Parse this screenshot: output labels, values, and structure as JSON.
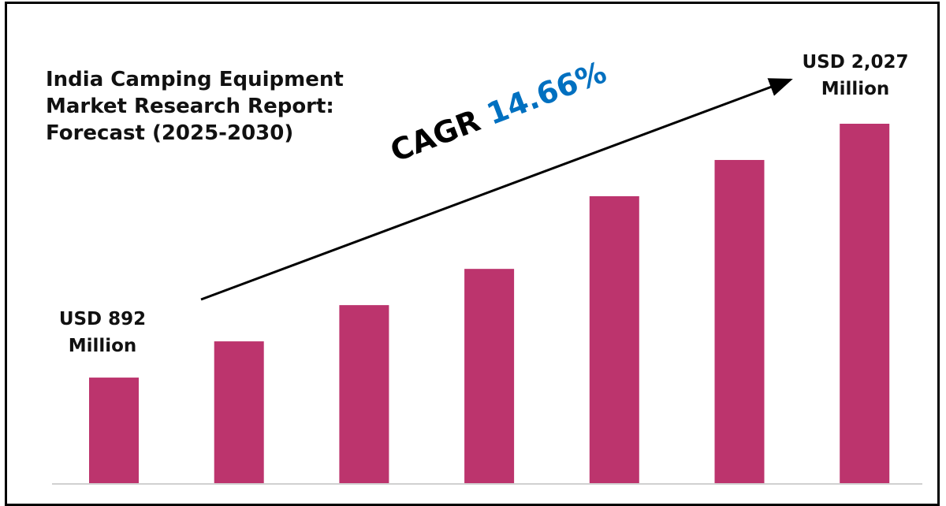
{
  "chart_data": {
    "type": "bar",
    "title": "India Camping Equipment Market Research Report: Forecast (2025-2030)",
    "title_lines": [
      "India Camping Equipment",
      "Market Research Report:",
      "Forecast (2025-2030)"
    ],
    "values": [
      892,
      1054,
      1216,
      1378,
      1703,
      1865,
      2027
    ],
    "ylim": [
      420,
      2100
    ],
    "bar_color": "#BC346D",
    "grid": false,
    "annotations": {
      "first": {
        "line1": "USD 892",
        "line2": "Million"
      },
      "last": {
        "line1": "USD 2,027",
        "line2": "Million"
      },
      "cagr_label": "CAGR",
      "cagr_value": "14.66%",
      "cagr_color": "#0070C0"
    }
  }
}
